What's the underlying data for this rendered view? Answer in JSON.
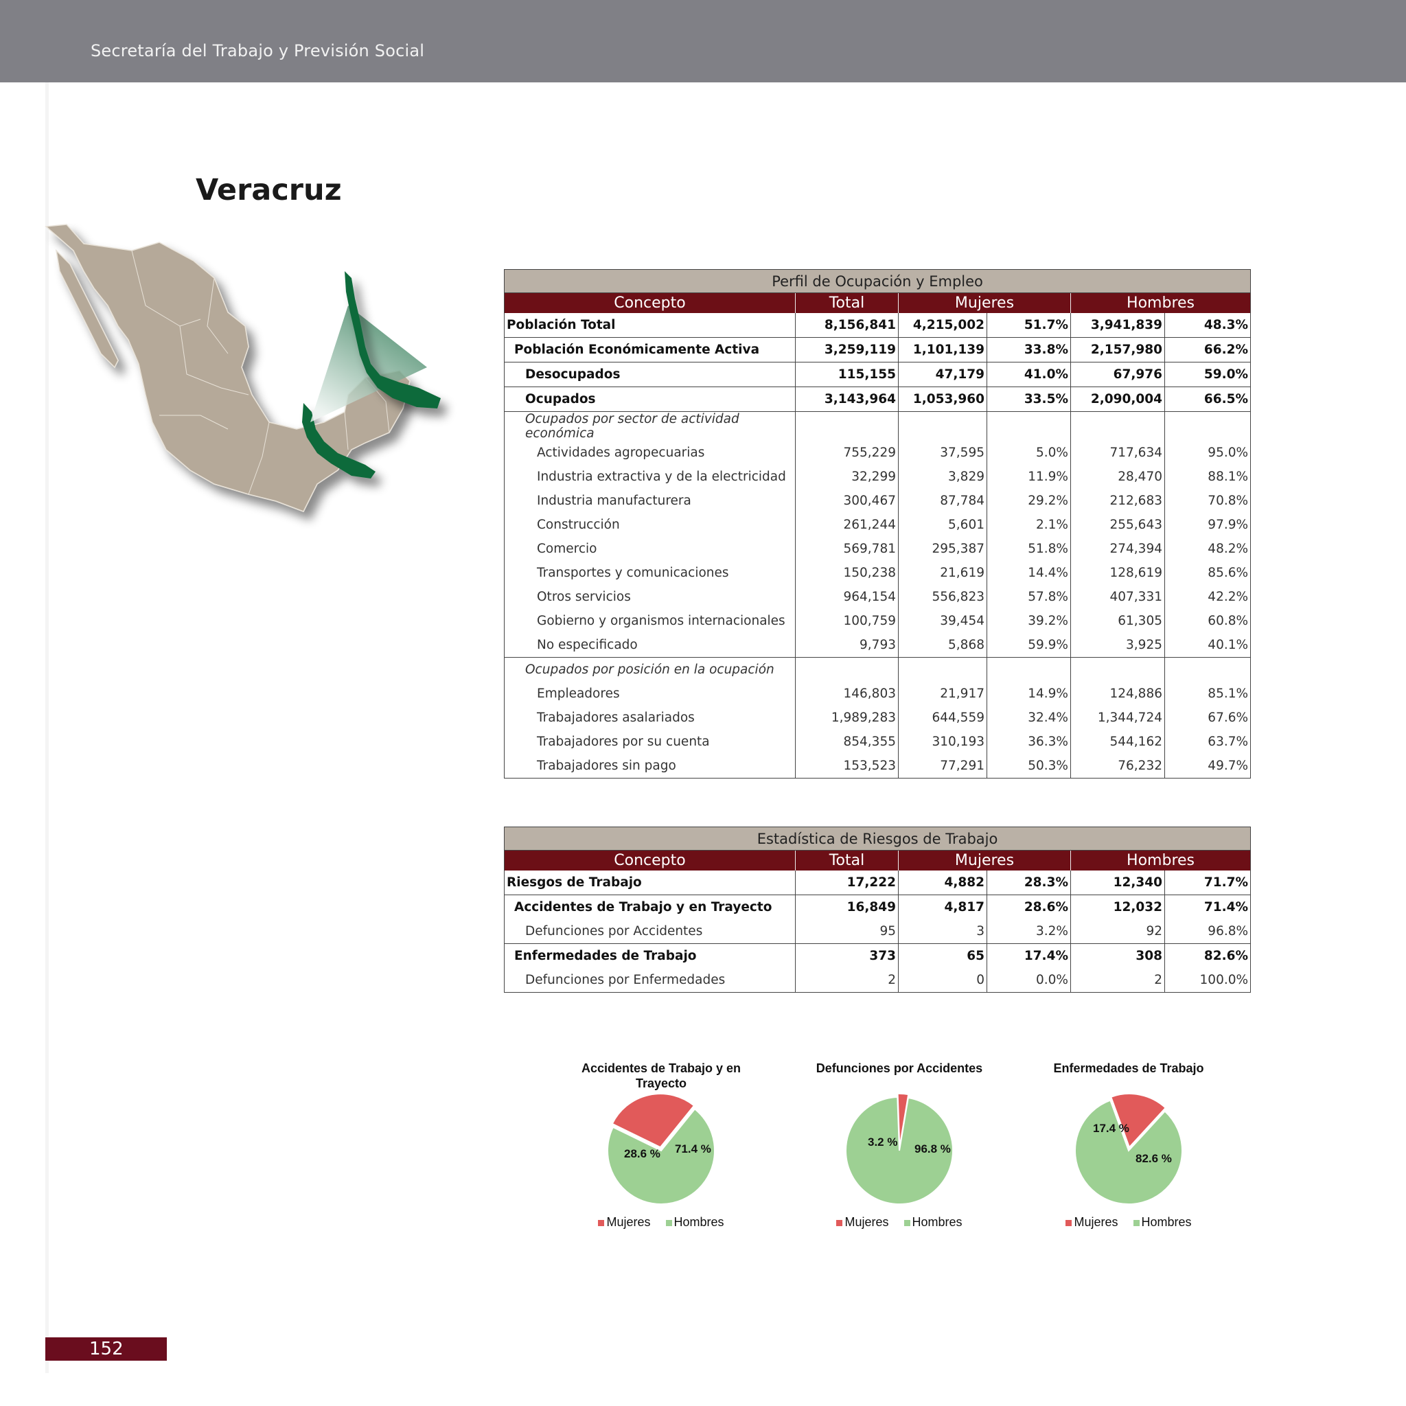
{
  "header": {
    "org": "Secretaría del Trabajo y Previsión Social"
  },
  "state": {
    "name": "Veracruz"
  },
  "colors": {
    "header_bar": "#808086",
    "table_header": "#6c0f16",
    "table_caption": "#bab1a6",
    "map_land": "#b5a999",
    "map_highlight": "#0e6b3a",
    "pie_mujeres": "#e15a5a",
    "pie_hombres": "#9dd093"
  },
  "employment_table": {
    "caption": "Perfil de Ocupación y Empleo",
    "headers": {
      "concepto": "Concepto",
      "total": "Total",
      "mujeres": "Mujeres",
      "hombres": "Hombres"
    },
    "rows": [
      {
        "label": "Población Total",
        "total": "8,156,841",
        "m": "4,215,002",
        "mp": "51.7%",
        "h": "3,941,839",
        "hp": "48.3%"
      },
      {
        "label": "Población Económicamente Activa",
        "total": "3,259,119",
        "m": "1,101,139",
        "mp": "33.8%",
        "h": "2,157,980",
        "hp": "66.2%"
      },
      {
        "label": "Desocupados",
        "total": "115,155",
        "m": "47,179",
        "mp": "41.0%",
        "h": "67,976",
        "hp": "59.0%"
      },
      {
        "label": "Ocupados",
        "total": "3,143,964",
        "m": "1,053,960",
        "mp": "33.5%",
        "h": "2,090,004",
        "hp": "66.5%"
      },
      {
        "label": "Ocupados por sector de actividad económica"
      },
      {
        "label": "Actividades agropecuarias",
        "total": "755,229",
        "m": "37,595",
        "mp": "5.0%",
        "h": "717,634",
        "hp": "95.0%"
      },
      {
        "label": "Industria extractiva y de la electricidad",
        "total": "32,299",
        "m": "3,829",
        "mp": "11.9%",
        "h": "28,470",
        "hp": "88.1%"
      },
      {
        "label": "Industria manufacturera",
        "total": "300,467",
        "m": "87,784",
        "mp": "29.2%",
        "h": "212,683",
        "hp": "70.8%"
      },
      {
        "label": "Construcción",
        "total": "261,244",
        "m": "5,601",
        "mp": "2.1%",
        "h": "255,643",
        "hp": "97.9%"
      },
      {
        "label": "Comercio",
        "total": "569,781",
        "m": "295,387",
        "mp": "51.8%",
        "h": "274,394",
        "hp": "48.2%"
      },
      {
        "label": "Transportes y comunicaciones",
        "total": "150,238",
        "m": "21,619",
        "mp": "14.4%",
        "h": "128,619",
        "hp": "85.6%"
      },
      {
        "label": "Otros servicios",
        "total": "964,154",
        "m": "556,823",
        "mp": "57.8%",
        "h": "407,331",
        "hp": "42.2%"
      },
      {
        "label": "Gobierno y organismos internacionales",
        "total": "100,759",
        "m": "39,454",
        "mp": "39.2%",
        "h": "61,305",
        "hp": "60.8%"
      },
      {
        "label": "No especificado",
        "total": "9,793",
        "m": "5,868",
        "mp": "59.9%",
        "h": "3,925",
        "hp": "40.1%"
      },
      {
        "label": "Ocupados por posición en la ocupación"
      },
      {
        "label": "Empleadores",
        "total": "146,803",
        "m": "21,917",
        "mp": "14.9%",
        "h": "124,886",
        "hp": "85.1%"
      },
      {
        "label": "Trabajadores asalariados",
        "total": "1,989,283",
        "m": "644,559",
        "mp": "32.4%",
        "h": "1,344,724",
        "hp": "67.6%"
      },
      {
        "label": "Trabajadores por su cuenta",
        "total": "854,355",
        "m": "310,193",
        "mp": "36.3%",
        "h": "544,162",
        "hp": "63.7%"
      },
      {
        "label": "Trabajadores sin pago",
        "total": "153,523",
        "m": "77,291",
        "mp": "50.3%",
        "h": "76,232",
        "hp": "49.7%"
      }
    ]
  },
  "risk_table": {
    "caption": "Estadística de Riesgos de Trabajo",
    "headers": {
      "concepto": "Concepto",
      "total": "Total",
      "mujeres": "Mujeres",
      "hombres": "Hombres"
    },
    "rows": [
      {
        "label": "Riesgos de Trabajo",
        "total": "17,222",
        "m": "4,882",
        "mp": "28.3%",
        "h": "12,340",
        "hp": "71.7%"
      },
      {
        "label": "Accidentes de Trabajo y en Trayecto",
        "total": "16,849",
        "m": "4,817",
        "mp": "28.6%",
        "h": "12,032",
        "hp": "71.4%"
      },
      {
        "label": "Defunciones por Accidentes",
        "total": "95",
        "m": "3",
        "mp": "3.2%",
        "h": "92",
        "hp": "96.8%"
      },
      {
        "label": "Enfermedades de Trabajo",
        "total": "373",
        "m": "65",
        "mp": "17.4%",
        "h": "308",
        "hp": "82.6%"
      },
      {
        "label": "Defunciones por Enfermedades",
        "total": "2",
        "m": "0",
        "mp": "0.0%",
        "h": "2",
        "hp": "100.0%"
      }
    ]
  },
  "chart_data": [
    {
      "type": "pie",
      "title": "Accidentes de Trabajo y en Trayecto",
      "labels": [
        "Mujeres",
        "Hombres"
      ],
      "values": [
        28.6,
        71.4
      ],
      "value_labels": [
        "28.6 %",
        "71.4 %"
      ],
      "legend": "bottom"
    },
    {
      "type": "pie",
      "title": "Defunciones por Accidentes",
      "labels": [
        "Mujeres",
        "Hombres"
      ],
      "values": [
        3.2,
        96.8
      ],
      "value_labels": [
        "3.2 %",
        "96.8 %"
      ],
      "legend": "bottom"
    },
    {
      "type": "pie",
      "title": "Enfermedades de Trabajo",
      "labels": [
        "Mujeres",
        "Hombres"
      ],
      "values": [
        17.4,
        82.6
      ],
      "value_labels": [
        "17.4 %",
        "82.6 %"
      ],
      "legend": "bottom"
    }
  ],
  "page": {
    "number": "152"
  }
}
